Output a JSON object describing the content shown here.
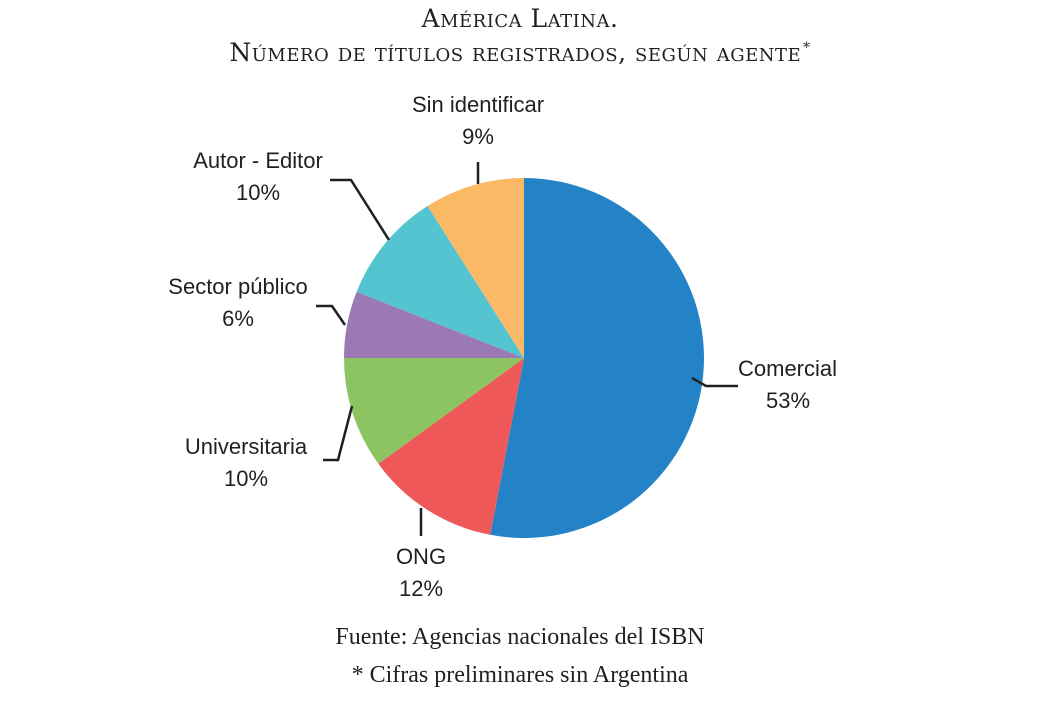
{
  "chart_data": {
    "type": "pie",
    "title_line1": "América Latina.",
    "title_line2": "Número de títulos registrados, según agente",
    "title_mark": "*",
    "slices": [
      {
        "label": "Comercial",
        "value": 53,
        "value_label": "53%",
        "color": "#2483c6"
      },
      {
        "label": "ONG",
        "value": 12,
        "value_label": "12%",
        "color": "#ef5859"
      },
      {
        "label": "Universitaria",
        "value": 10,
        "value_label": "10%",
        "color": "#8bc460"
      },
      {
        "label": "Sector público",
        "value": 6,
        "value_label": "6%",
        "color": "#9b79b5"
      },
      {
        "label": "Autor - Editor",
        "value": 10,
        "value_label": "10%",
        "color": "#54c4d0"
      },
      {
        "label": "Sin identificar",
        "value": 9,
        "value_label": "9%",
        "color": "#fbb865"
      }
    ],
    "start": "12 o'clock",
    "direction": "clockwise",
    "source": "Fuente: Agencias nacionales del ISBN",
    "note": "* Cifras preliminares sin Argentina"
  }
}
